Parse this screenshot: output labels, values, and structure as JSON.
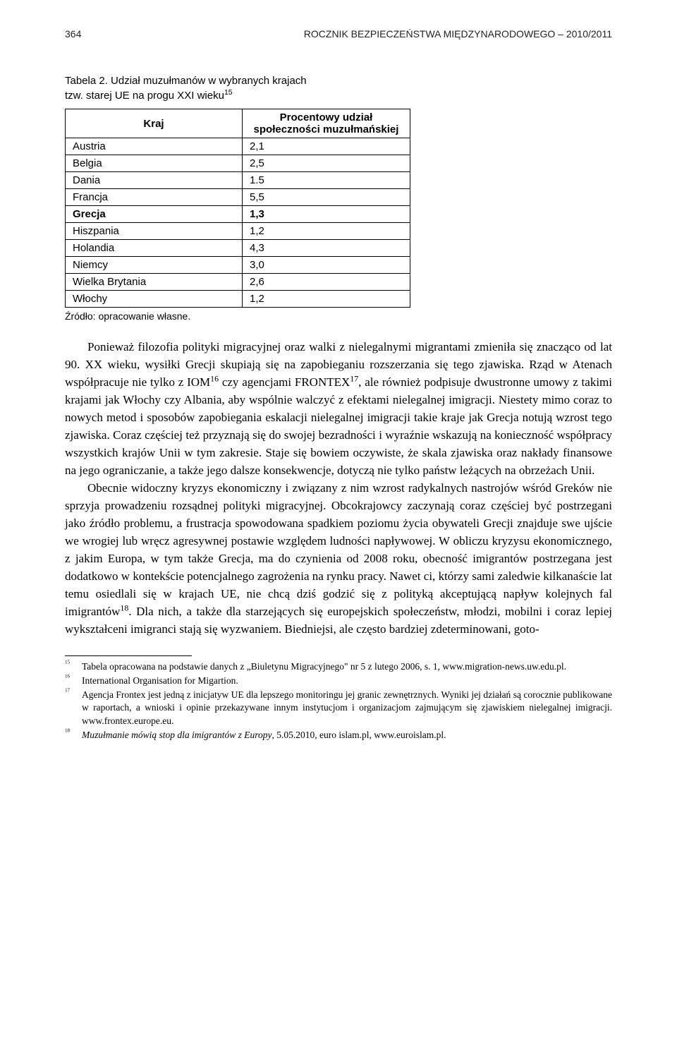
{
  "header": {
    "page_number": "364",
    "running_title": "ROCZNIK BEZPIECZEŃSTWA MIĘDZYNARODOWEGO – 2010/2011"
  },
  "table": {
    "caption_line1": "Tabela 2. Udział muzułmanów w wybranych krajach",
    "caption_line2": "tzw. starej UE na progu XXI wieku",
    "caption_sup": "15",
    "col1_header": "Kraj",
    "col2_header": "Procentowy udział społeczności muzułmańskiej",
    "rows": [
      {
        "country": "Austria",
        "value": "2,1",
        "bold": false
      },
      {
        "country": "Belgia",
        "value": "2,5",
        "bold": false
      },
      {
        "country": "Dania",
        "value": "1.5",
        "bold": false
      },
      {
        "country": "Francja",
        "value": "5,5",
        "bold": false
      },
      {
        "country": "Grecja",
        "value": "1,3",
        "bold": true
      },
      {
        "country": "Hiszpania",
        "value": "1,2",
        "bold": false
      },
      {
        "country": "Holandia",
        "value": "4,3",
        "bold": false
      },
      {
        "country": "Niemcy",
        "value": "3,0",
        "bold": false
      },
      {
        "country": "Wielka Brytania",
        "value": "2,6",
        "bold": false
      },
      {
        "country": "Włochy",
        "value": "1,2",
        "bold": false
      }
    ],
    "source": "Źródło: opracowanie własne."
  },
  "paragraphs": {
    "p1": "Ponieważ filozofia polityki migracyjnej oraz walki z nielegalnymi migrantami zmieniła się znacząco od lat 90. XX wieku, wysiłki Grecji skupiają się na zapobieganiu rozszerzania się tego zjawiska. Rząd w Atenach współpracuje nie tylko z IOM¹⁶ czy agencjami FRONTEX¹⁷, ale również podpisuje dwustronne umowy z takimi krajami jak Włochy czy Albania, aby wspólnie walczyć z efektami nielegalnej imigracji. Niestety mimo coraz to nowych metod i sposobów zapobiegania eskalacji nielegalnej imigracji takie kraje jak Grecja notują wzrost tego zjawiska. Coraz częściej też przyznają się do swojej bezradności i wyraźnie wskazują na konieczność współpracy wszystkich krajów Unii w tym zakresie. Staje się bowiem oczywiste, że skala zjawiska oraz nakłady finansowe na jego ograniczanie, a także jego dalsze konsekwencje, dotyczą nie tylko państw leżących na obrzeżach Unii.",
    "p2": "Obecnie widoczny kryzys ekonomiczny i związany z nim wzrost radykalnych nastrojów wśród Greków nie sprzyja prowadzeniu rozsądnej polityki migracyjnej. Obcokrajowcy zaczynają coraz częściej być postrzegani jako źródło problemu, a frustracja spowodowana spadkiem poziomu życia obywateli Grecji znajduje swe ujście we wrogiej lub wręcz agresywnej postawie względem ludności napływowej. W obliczu kryzysu ekonomicznego, z jakim Europa, w tym także Grecja, ma do czynienia od 2008 roku, obecność imigrantów postrzegana jest dodatkowo w kontekście potencjalnego zagrożenia na rynku pracy. Nawet ci, którzy sami zaledwie kilkanaście lat temu osiedlali się w krajach UE, nie chcą dziś godzić się z polityką akceptującą napływ kolejnych fal imigrantów¹⁸. Dla nich, a także dla starzejących się europejskich społeczeństw, młodzi, mobilni i coraz lepiej wykształceni imigranci stają się wyzwaniem. Biedniejsi, ale często bardziej zdeterminowani, goto-"
  },
  "footnotes": [
    {
      "num": "15",
      "text": "Tabela opracowana na podstawie danych z „Biuletynu Migracyjnego\" nr 5 z lutego 2006, s. 1, www.migration-news.uw.edu.pl."
    },
    {
      "num": "16",
      "text": "International Organisation for Migartion."
    },
    {
      "num": "17",
      "text": "Agencja Frontex jest jedną z inicjatyw UE dla lepszego monitoringu jej granic zewnętrznych. Wyniki jej działań są corocznie publikowane w raportach, a wnioski i opinie przekazywane innym instytucjom i organizacjom zajmującym się zjawiskiem nielegalnej imigracji. www.frontex.europe.eu."
    },
    {
      "num": "18",
      "text_italic": "Muzułmanie mówią stop dla imigrantów z Europy",
      "text_rest": ", 5.05.2010, euro islam.pl, www.euroislam.pl."
    }
  ]
}
